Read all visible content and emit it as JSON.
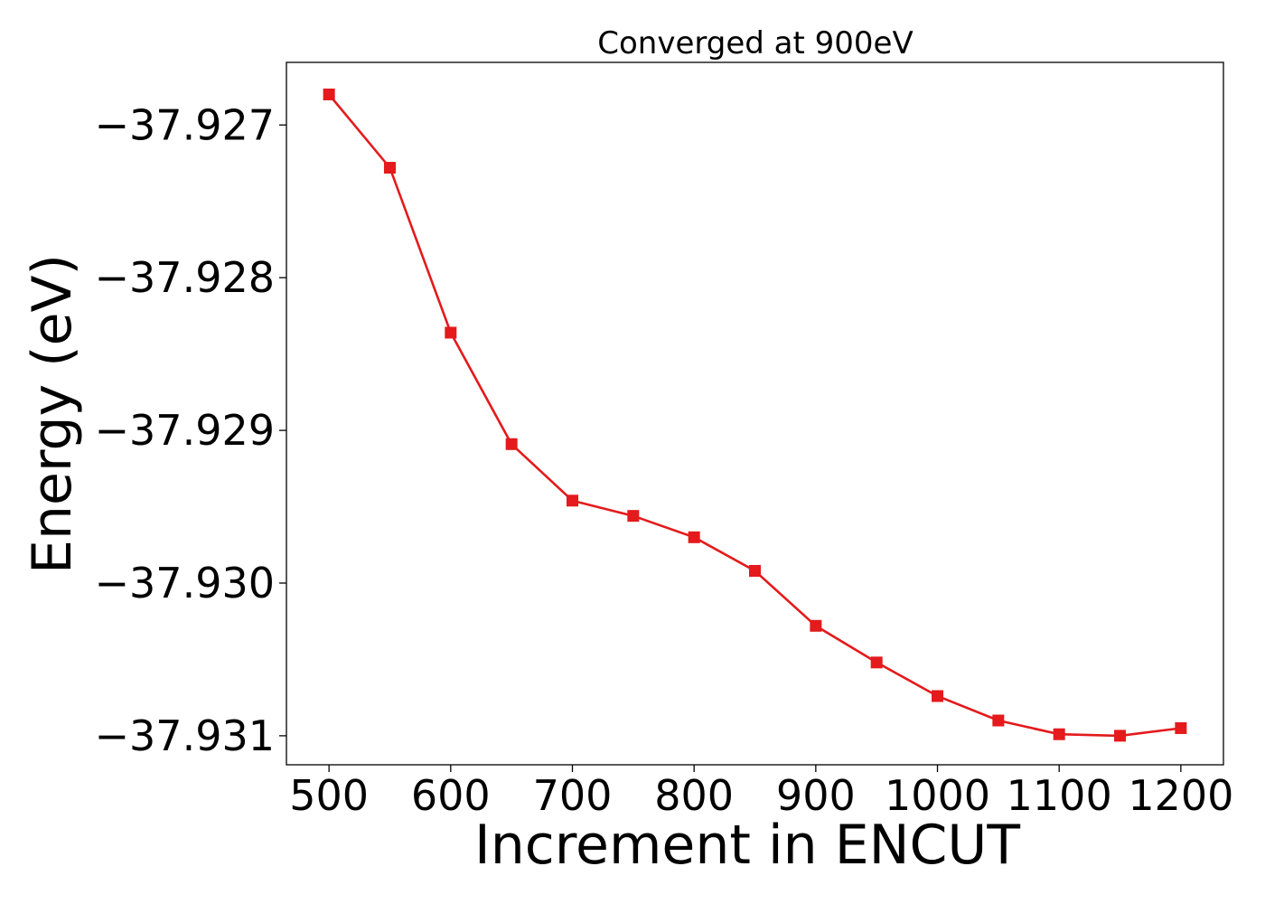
{
  "chart_data": {
    "type": "line",
    "title": "Converged at 900eV",
    "xlabel": "Increment in ENCUT",
    "ylabel": "Energy (eV)",
    "xlim": [
      465,
      1235
    ],
    "ylim": [
      -37.93119,
      -37.92659
    ],
    "x_ticks": [
      500,
      600,
      700,
      800,
      900,
      1000,
      1100,
      1200
    ],
    "x_tick_labels": [
      "500",
      "600",
      "700",
      "800",
      "900",
      "1000",
      "1100",
      "1200"
    ],
    "y_ticks": [
      -37.927,
      -37.928,
      -37.929,
      -37.93,
      -37.931
    ],
    "y_tick_labels": [
      "−37.927",
      "−37.928",
      "−37.929",
      "−37.930",
      "−37.931"
    ],
    "grid": false,
    "series": [
      {
        "color": "#e41a1c",
        "marker": "square",
        "x": [
          500,
          550,
          600,
          650,
          700,
          750,
          800,
          850,
          900,
          950,
          1000,
          1050,
          1100,
          1150,
          1200
        ],
        "y": [
          -37.9268,
          -37.92728,
          -37.92836,
          -37.92909,
          -37.92946,
          -37.92956,
          -37.9297,
          -37.92992,
          -37.93028,
          -37.93052,
          -37.93074,
          -37.9309,
          -37.93099,
          -37.931,
          -37.93095
        ]
      }
    ]
  }
}
